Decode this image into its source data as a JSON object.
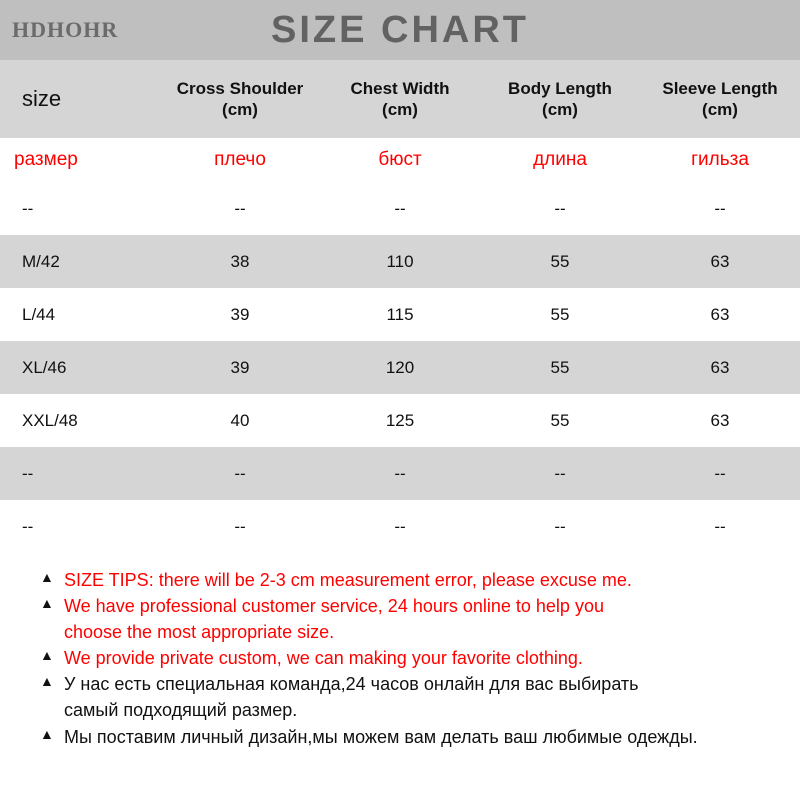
{
  "header": {
    "brand": "HDHOHR",
    "title": "SIZE CHART"
  },
  "table": {
    "columns": [
      {
        "en": "size",
        "ru": "размер"
      },
      {
        "en": "Cross Shoulder\n(cm)",
        "ru": "плечо"
      },
      {
        "en": "Chest Width\n(cm)",
        "ru": "бюст"
      },
      {
        "en": "Body Length\n(cm)",
        "ru": "длина"
      },
      {
        "en": "Sleeve Length\n(cm)",
        "ru": "гильза"
      }
    ],
    "rows": [
      {
        "bg": "w",
        "cells": [
          "--",
          "--",
          "--",
          "--",
          "--"
        ]
      },
      {
        "bg": "g",
        "cells": [
          "M/42",
          "38",
          "110",
          "55",
          "63"
        ]
      },
      {
        "bg": "w",
        "cells": [
          "L/44",
          "39",
          "115",
          "55",
          "63"
        ]
      },
      {
        "bg": "g",
        "cells": [
          "XL/46",
          "39",
          "120",
          "55",
          "63"
        ]
      },
      {
        "bg": "w",
        "cells": [
          "XXL/48",
          "40",
          "125",
          "55",
          "63"
        ]
      },
      {
        "bg": "g",
        "cells": [
          "--",
          "--",
          "--",
          "--",
          "--"
        ]
      },
      {
        "bg": "w",
        "cells": [
          "--",
          "--",
          "--",
          "--",
          "--"
        ]
      }
    ]
  },
  "tips": {
    "t1": "SIZE TIPS: there will be 2-3 cm measurement error, please excuse me.",
    "t2a": "We have professional customer service, 24 hours online to help you",
    "t2b": "choose the most appropriate size.",
    "t3": "We provide private custom, we can making your favorite clothing.",
    "t4a": "У нас есть специальная команда,24 часов онлайн для вас выбирать",
    "t4b": "самый подходящий размер.",
    "t5": "Мы поставим личный дизайн,мы можем вам делать ваш любимые одежды."
  },
  "style": {
    "gray_dark": "#bfbfbf",
    "gray_row": "#d5d5d5",
    "white": "#ffffff",
    "red": "#ff0000",
    "title_color": "#626262"
  }
}
